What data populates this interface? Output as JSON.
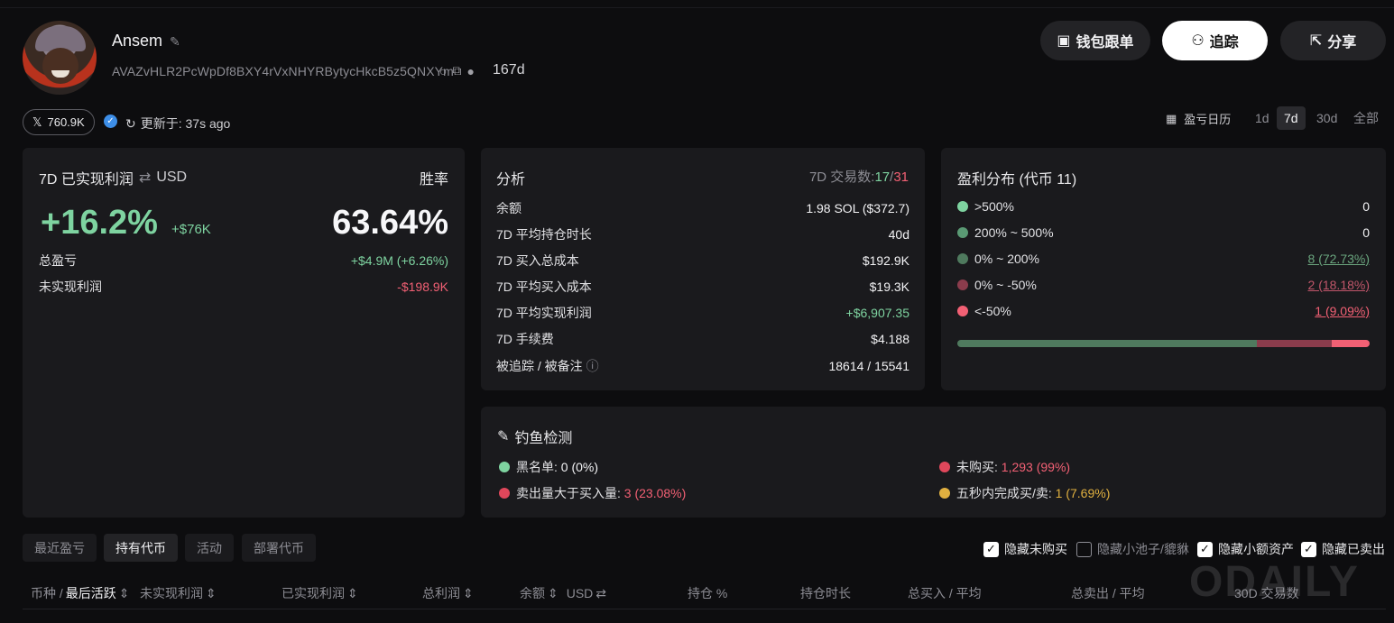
{
  "profile": {
    "name": "Ansem",
    "address": "AVAZvHLR2PcWpDf8BXY4rVxNHYRBytycHkcB5z5QNXYm",
    "age": "167d",
    "x_followers": "760.9K",
    "updated": "更新于: 37s ago"
  },
  "header_buttons": {
    "wallet": "钱包跟单",
    "follow": "追踪",
    "share": "分享"
  },
  "period": {
    "calendar": "盈亏日历",
    "options": [
      "1d",
      "7d",
      "30d",
      "全部"
    ],
    "selected": "7d"
  },
  "pnl_card": {
    "title": "7D 已实现利润",
    "currency": "USD",
    "winrate_label": "胜率",
    "pnl_percent": "+16.2%",
    "pnl_amount": "+$76K",
    "winrate": "63.64%",
    "rows": [
      {
        "label": "总盈亏",
        "value": "+$4.9M (+6.26%)",
        "tone": "green"
      },
      {
        "label": "未实现利润",
        "value": "-$198.9K",
        "tone": "red"
      }
    ]
  },
  "analysis": {
    "title": "分析",
    "trades_label": "7D 交易数:",
    "trades_win": "17",
    "trades_sep": "/",
    "trades_loss": "31",
    "rows": [
      {
        "label": "余额",
        "value": "1.98 SOL ($372.7)",
        "tone": "val"
      },
      {
        "label": "7D 平均持仓时长",
        "value": "40d",
        "tone": "val"
      },
      {
        "label": "7D 买入总成本",
        "value": "$192.9K",
        "tone": "val"
      },
      {
        "label": "7D 平均买入成本",
        "value": "$19.3K",
        "tone": "val"
      },
      {
        "label": "7D 平均实现利润",
        "value": "+$6,907.35",
        "tone": "green"
      },
      {
        "label": "7D 手续费",
        "value": "$4.188",
        "tone": "val"
      },
      {
        "label": "被追踪 / 被备注",
        "value": "18614 / 15541",
        "tone": "val"
      }
    ]
  },
  "distribution": {
    "title": "盈利分布 (代币 11)",
    "rows": [
      {
        "label": ">500%",
        "value": "0",
        "color": "#7ed3a0",
        "fraction": 0
      },
      {
        "label": "200% ~ 500%",
        "value": "0",
        "color": "#5a9a74",
        "fraction": 0
      },
      {
        "label": "0% ~ 200%",
        "value": "8 (72.73%)",
        "color": "#4f7a5e",
        "fraction": 0.7273
      },
      {
        "label": "0% ~ -50%",
        "value": "2 (18.18%)",
        "color": "#8b3c4c",
        "fraction": 0.1818
      },
      {
        "label": "<-50%",
        "value": "1 (9.09%)",
        "color": "#f26074",
        "fraction": 0.0909
      }
    ]
  },
  "phishing": {
    "title": "钓鱼检测",
    "items": [
      {
        "label": "黑名单:",
        "value": "0 (0%)",
        "color": "#7ed3a0",
        "tone": "val"
      },
      {
        "label": "未购买:",
        "value": "1,293 (99%)",
        "color": "#e0475b",
        "tone": "red"
      },
      {
        "label": "卖出量大于买入量:",
        "value": "3 (23.08%)",
        "color": "#e0475b",
        "tone": "red"
      },
      {
        "label": "五秒内完成买/卖:",
        "value": "1 (7.69%)",
        "color": "#e0b040",
        "tone": "yellow"
      }
    ]
  },
  "tabs": [
    "最近盈亏",
    "持有代币",
    "活动",
    "部署代币"
  ],
  "active_tab": "持有代币",
  "filters": [
    {
      "label": "隐藏未购买",
      "checked": true
    },
    {
      "label": "隐藏小池子/貔貅",
      "checked": false
    },
    {
      "label": "隐藏小额资产",
      "checked": true
    },
    {
      "label": "隐藏已卖出",
      "checked": true
    }
  ],
  "table_headers": {
    "token": "币种 /",
    "last_active": "最后活跃",
    "unrealized": "未实现利润",
    "realized": "已实现利润",
    "total": "总利润",
    "balance": "余额",
    "balance_unit": "USD",
    "position": "持仓 %",
    "hold_time": "持仓时长",
    "buy": "总买入 / 平均",
    "sell": "总卖出 / 平均",
    "txs": "30D 交易数"
  },
  "watermark": "ODAILY"
}
